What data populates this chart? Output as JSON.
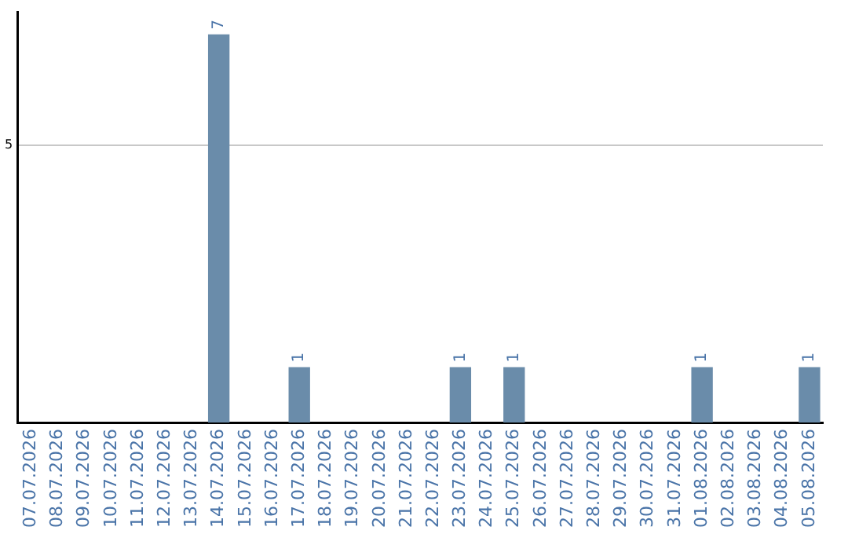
{
  "chart_data": {
    "type": "bar",
    "categories": [
      "07.07.2026",
      "08.07.2026",
      "09.07.2026",
      "10.07.2026",
      "11.07.2026",
      "12.07.2026",
      "13.07.2026",
      "14.07.2026",
      "15.07.2026",
      "16.07.2026",
      "17.07.2026",
      "18.07.2026",
      "19.07.2026",
      "20.07.2026",
      "21.07.2026",
      "22.07.2026",
      "23.07.2026",
      "24.07.2026",
      "25.07.2026",
      "26.07.2026",
      "27.07.2026",
      "28.07.2026",
      "29.07.2026",
      "30.07.2026",
      "31.07.2026",
      "01.08.2026",
      "02.08.2026",
      "03.08.2026",
      "04.08.2026",
      "05.08.2026"
    ],
    "values": [
      0,
      0,
      0,
      0,
      0,
      0,
      0,
      7,
      0,
      0,
      1,
      0,
      0,
      0,
      0,
      0,
      1,
      0,
      1,
      0,
      0,
      0,
      0,
      0,
      0,
      1,
      0,
      0,
      0,
      1
    ],
    "value_labels": [
      null,
      null,
      null,
      null,
      null,
      null,
      null,
      "7",
      null,
      null,
      "1",
      null,
      null,
      null,
      null,
      null,
      "1",
      null,
      "1",
      null,
      null,
      null,
      null,
      null,
      null,
      "1",
      null,
      null,
      null,
      "1"
    ],
    "color": "#6a8caa",
    "ylim": [
      0,
      7.4
    ],
    "yticks": [
      5
    ],
    "grid": "y",
    "legend": false
  }
}
